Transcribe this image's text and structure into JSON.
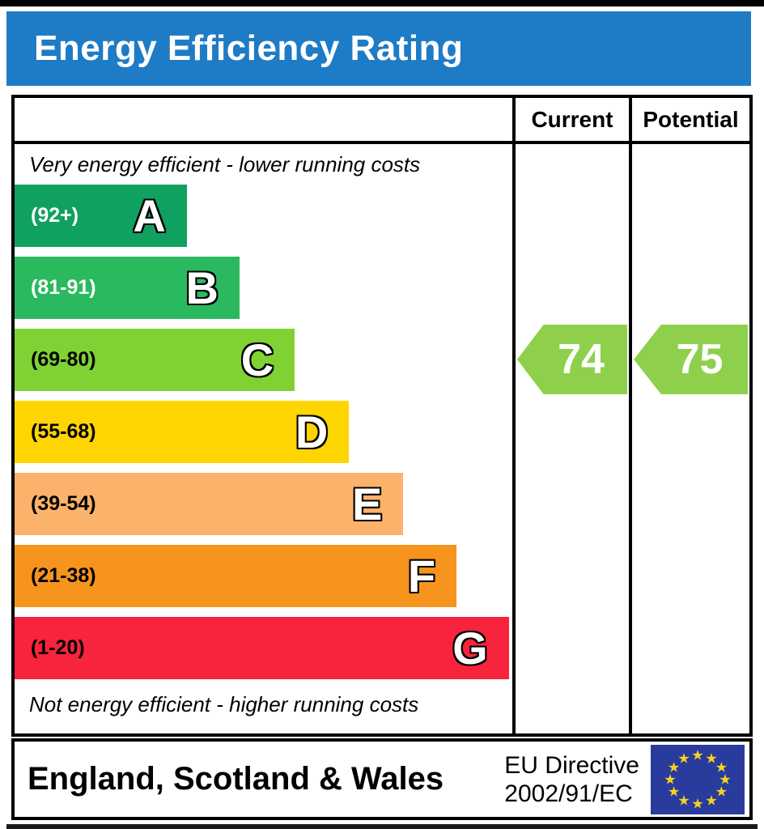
{
  "title": "Energy Efficiency Rating",
  "columns": {
    "current": "Current",
    "potential": "Potential"
  },
  "captions": {
    "top": "Very energy efficient - lower running costs",
    "bottom": "Not energy efficient - higher running costs"
  },
  "bands": [
    {
      "letter": "A",
      "range": "(92+)",
      "color": "#10a060",
      "label_color": "#ffffff",
      "width_pct": 34.6
    },
    {
      "letter": "B",
      "range": "(81-91)",
      "color": "#2bb95f",
      "label_color": "#ffffff",
      "width_pct": 45.2
    },
    {
      "letter": "C",
      "range": "(69-80)",
      "color": "#80d234",
      "label_color": "#000000",
      "width_pct": 56.3
    },
    {
      "letter": "D",
      "range": "(55-68)",
      "color": "#fed500",
      "label_color": "#000000",
      "width_pct": 67.2
    },
    {
      "letter": "E",
      "range": "(39-54)",
      "color": "#fbb26a",
      "label_color": "#000000",
      "width_pct": 78.1
    },
    {
      "letter": "F",
      "range": "(21-38)",
      "color": "#f6941e",
      "label_color": "#000000",
      "width_pct": 88.8
    },
    {
      "letter": "G",
      "range": "(1-20)",
      "color": "#f8233c",
      "label_color": "#000000",
      "width_pct": 99.3
    }
  ],
  "ratings": {
    "current": {
      "value": "74",
      "band": "C"
    },
    "potential": {
      "value": "75",
      "band": "C"
    }
  },
  "footer": {
    "region": "England, Scotland & Wales",
    "directive_line1": "EU Directive",
    "directive_line2": "2002/91/EC",
    "flag": "eu-flag"
  },
  "colors": {
    "header_blue": "#1e7bc6",
    "flag_blue": "#2a3b9e",
    "star_yellow": "#f2d41f",
    "arrow_color": "#8ed04c"
  },
  "chart_data": {
    "type": "bar",
    "title": "Energy Efficiency Rating",
    "categories": [
      "A",
      "B",
      "C",
      "D",
      "E",
      "F",
      "G"
    ],
    "band_ranges": [
      "92+",
      "81-91",
      "69-80",
      "55-68",
      "39-54",
      "21-38",
      "1-20"
    ],
    "band_colors": [
      "#10a060",
      "#2bb95f",
      "#80d234",
      "#fed500",
      "#fbb26a",
      "#f6941e",
      "#f8233c"
    ],
    "bar_widths_pct": [
      34.6,
      45.2,
      56.3,
      67.2,
      78.1,
      88.8,
      99.3
    ],
    "series": [
      {
        "name": "Current",
        "value": 74,
        "band": "C"
      },
      {
        "name": "Potential",
        "value": 75,
        "band": "C"
      }
    ],
    "footer_region": "England, Scotland & Wales",
    "footer_directive": "EU Directive 2002/91/EC",
    "legend_position": "top-right-columns",
    "value_range": [
      1,
      100
    ]
  }
}
